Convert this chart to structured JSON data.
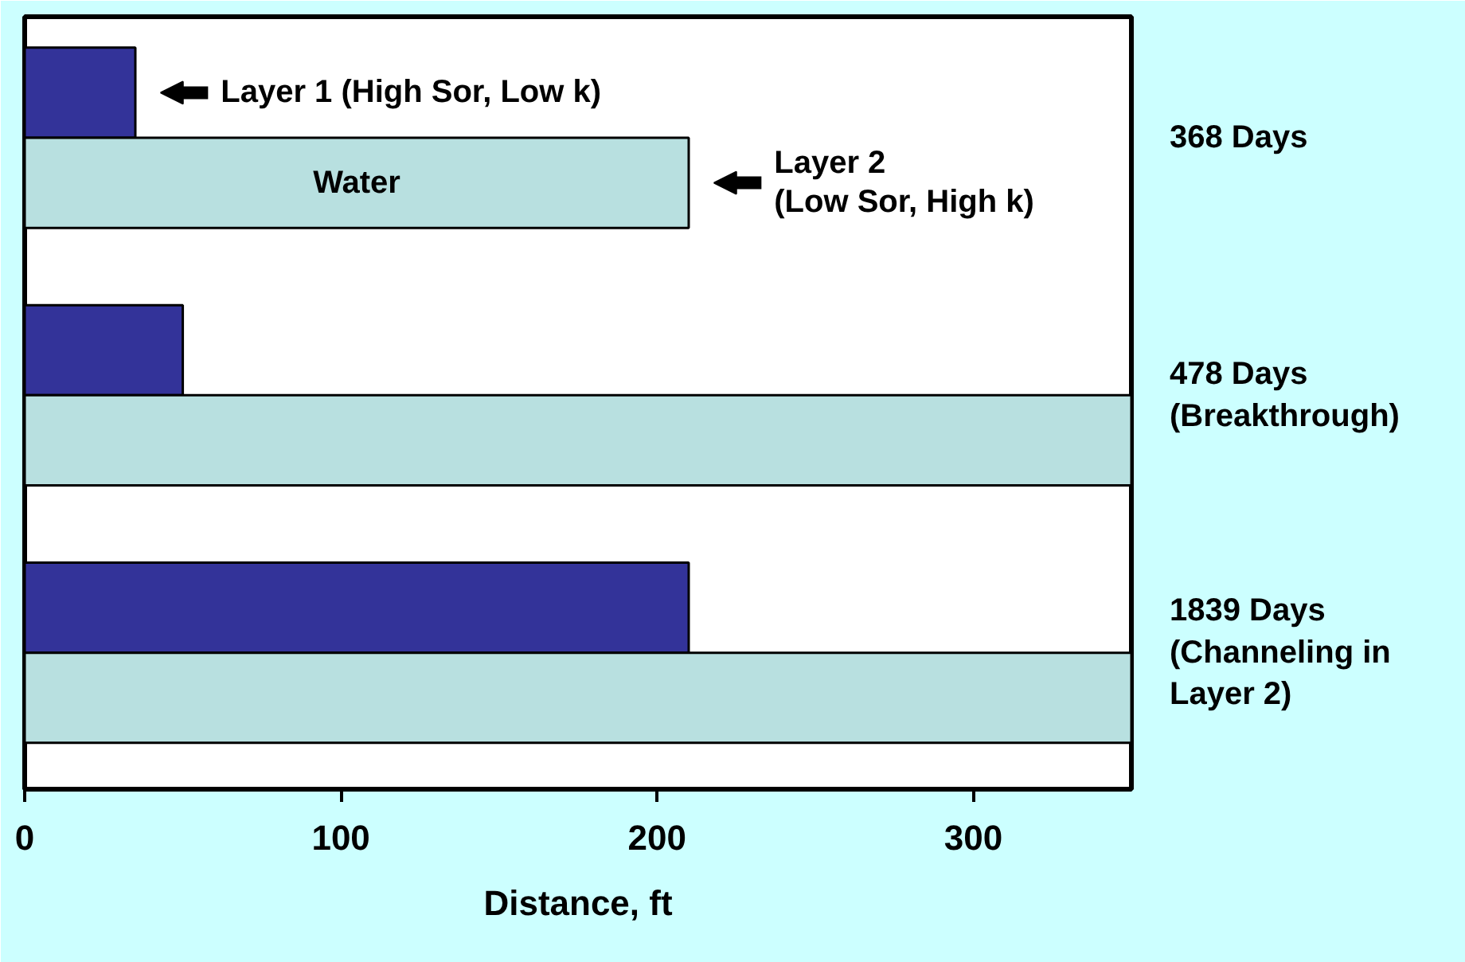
{
  "chart_data": {
    "type": "bar",
    "orientation": "horizontal",
    "xlabel": "Distance, ft",
    "categories": [
      "368 Days",
      "478 Days\n(Breakthrough)",
      "1839 Days\n(Channeling in\nLayer 2)"
    ],
    "series": [
      {
        "name": "Layer 1 (High Sor, Low k)",
        "color": "#333399",
        "values": [
          35,
          50,
          210
        ]
      },
      {
        "name": "Layer 2\n(Low Sor, High k)",
        "color": "#b8e0e0",
        "values": [
          210,
          350,
          350
        ]
      }
    ],
    "annotations": [
      "Water"
    ],
    "xlim": [
      0,
      350
    ],
    "xticks": [
      0,
      100,
      200,
      300
    ],
    "grid": false,
    "legend": "top"
  }
}
